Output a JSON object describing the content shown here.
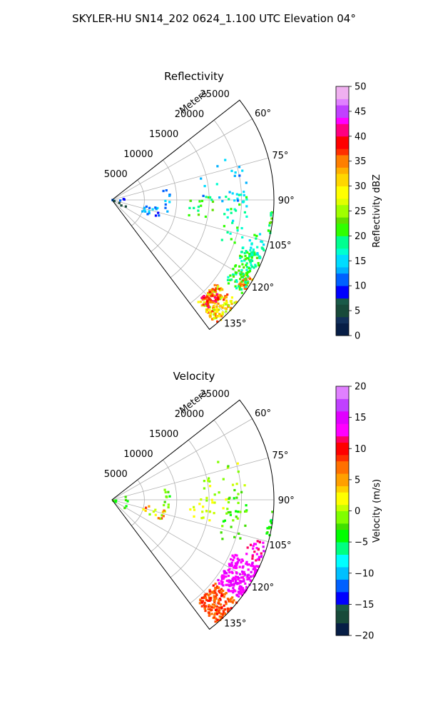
{
  "suptitle": "SKYLER-HU  SN14_202  0624_1.100 UTC Elevation 04°",
  "chart_data": [
    {
      "type": "heatmap",
      "projection": "polar-sector",
      "title": "Reflectivity",
      "r_label": "Meters",
      "r_ticks": [
        5000,
        10000,
        15000,
        20000,
        25000
      ],
      "r_tick_labels": [
        "5000",
        "10000",
        "15000",
        "20000",
        "25000"
      ],
      "r_range": [
        0,
        25000
      ],
      "theta_range_deg": [
        52,
        143
      ],
      "theta_ticks_deg": [
        60,
        75,
        90,
        105,
        120,
        135
      ],
      "theta_tick_labels": [
        "60°",
        "75°",
        "90°",
        "105°",
        "120°",
        "135°"
      ],
      "grid": true,
      "colorbar": {
        "label": "Reflectivity dBZ",
        "min": 0,
        "max": 50,
        "ticks": [
          0,
          5,
          10,
          15,
          20,
          25,
          30,
          35,
          40,
          45,
          50
        ],
        "tick_labels": [
          "0",
          "5",
          "10",
          "15",
          "20",
          "25",
          "30",
          "35",
          "40",
          "45",
          "50"
        ]
      },
      "regions": [
        {
          "az": [
            129,
            140
          ],
          "r": [
            20500,
            25000
          ],
          "value": 31,
          "spread": 7,
          "density": 0.9
        },
        {
          "az": [
            131,
            138
          ],
          "r": [
            20500,
            22500
          ],
          "value": 38,
          "spread": 4,
          "density": 0.9
        },
        {
          "az": [
            119,
            124
          ],
          "r": [
            23500,
            25000
          ],
          "value": 34,
          "spread": 4,
          "density": 0.75
        },
        {
          "az": [
            110,
            126
          ],
          "r": [
            21500,
            24800
          ],
          "value": 20,
          "spread": 3,
          "density": 0.55
        },
        {
          "az": [
            103,
            112
          ],
          "r": [
            22000,
            24800
          ],
          "value": 18,
          "spread": 3,
          "density": 0.3
        },
        {
          "az": [
            94,
            103
          ],
          "r": [
            24400,
            25000
          ],
          "value": 21,
          "spread": 3,
          "density": 0.55
        },
        {
          "az": [
            78,
            103
          ],
          "r": [
            8000,
            9000
          ],
          "value": 13,
          "spread": 3,
          "density": 0.3
        },
        {
          "az": [
            100,
            112
          ],
          "r": [
            5000,
            8500
          ],
          "value": 12,
          "spread": 3,
          "density": 0.35
        },
        {
          "az": [
            72,
            125
          ],
          "r": [
            0,
            2500
          ],
          "value": 8,
          "spread": 5,
          "density": 0.35
        },
        {
          "az": [
            88,
            102
          ],
          "r": [
            12000,
            16000
          ],
          "value": 21,
          "spread": 3,
          "density": 0.15
        },
        {
          "az": [
            85,
            110
          ],
          "r": [
            17500,
            21000
          ],
          "value": 18,
          "spread": 3,
          "density": 0.12
        },
        {
          "az": [
            70,
            95
          ],
          "r": [
            14000,
            21000
          ],
          "value": 14,
          "spread": 3,
          "density": 0.05
        }
      ]
    },
    {
      "type": "heatmap",
      "projection": "polar-sector",
      "title": "Velocity",
      "r_label": "Meters",
      "r_ticks": [
        5000,
        10000,
        15000,
        20000,
        25000
      ],
      "r_tick_labels": [
        "5000",
        "10000",
        "15000",
        "20000",
        "25000"
      ],
      "r_range": [
        0,
        25000
      ],
      "theta_range_deg": [
        52,
        143
      ],
      "theta_ticks_deg": [
        60,
        75,
        90,
        105,
        120,
        135
      ],
      "theta_tick_labels": [
        "60°",
        "75°",
        "90°",
        "105°",
        "120°",
        "135°"
      ],
      "grid": true,
      "colorbar": {
        "label": "Velocity (m/s)",
        "min": -20,
        "max": 20,
        "ticks": [
          -20,
          -15,
          -10,
          -5,
          0,
          5,
          10,
          15,
          20
        ],
        "tick_labels": [
          "−20",
          "−15",
          "−10",
          "−5",
          "0",
          "5",
          "10",
          "15",
          "20"
        ]
      },
      "regions": [
        {
          "az": [
            129,
            140
          ],
          "r": [
            20500,
            25000
          ],
          "value": 8,
          "spread": 2,
          "density": 0.9
        },
        {
          "az": [
            114,
            128
          ],
          "r": [
            20500,
            25000
          ],
          "value": 14,
          "spread": 1.5,
          "density": 0.85
        },
        {
          "az": [
            105,
            113
          ],
          "r": [
            22000,
            24800
          ],
          "value": 13,
          "spread": 2,
          "density": 0.35
        },
        {
          "az": [
            94,
            103
          ],
          "r": [
            24400,
            25000
          ],
          "value": -4,
          "spread": 2,
          "density": 0.55
        },
        {
          "az": [
            78,
            103
          ],
          "r": [
            8000,
            9000
          ],
          "value": -2,
          "spread": 2,
          "density": 0.3
        },
        {
          "az": [
            100,
            112
          ],
          "r": [
            5000,
            8500
          ],
          "value": 4,
          "spread": 5,
          "density": 0.35
        },
        {
          "az": [
            72,
            125
          ],
          "r": [
            0,
            2500
          ],
          "value": -3,
          "spread": 2,
          "density": 0.3
        },
        {
          "az": [
            88,
            102
          ],
          "r": [
            12000,
            16000
          ],
          "value": 1,
          "spread": 1,
          "density": 0.15
        },
        {
          "az": [
            85,
            110
          ],
          "r": [
            17500,
            21000
          ],
          "value": -2,
          "spread": 2,
          "density": 0.12
        },
        {
          "az": [
            70,
            95
          ],
          "r": [
            14000,
            21000
          ],
          "value": 0,
          "spread": 2,
          "density": 0.05
        }
      ]
    }
  ]
}
